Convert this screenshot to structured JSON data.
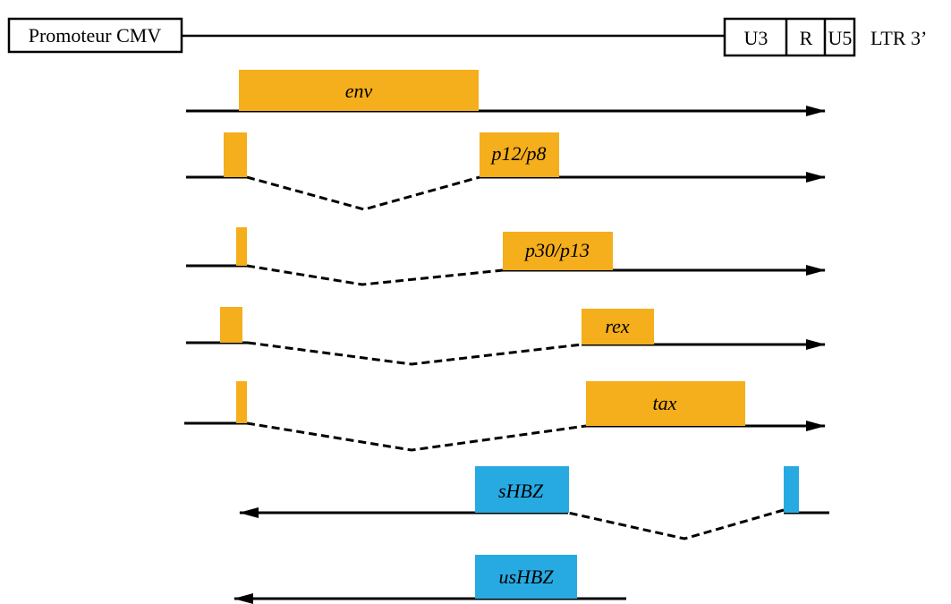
{
  "header": {
    "promoter_label": "Promoteur CMV",
    "ltr_boxes": [
      "U3",
      "R",
      "U5"
    ],
    "ltr_label": "LTR 3’"
  },
  "transcripts": [
    {
      "label": "env"
    },
    {
      "label": "p12/p8"
    },
    {
      "label": "p30/p13"
    },
    {
      "label": "rex"
    },
    {
      "label": "tax"
    },
    {
      "label": "sHBZ"
    },
    {
      "label": "usHBZ"
    }
  ],
  "colors": {
    "sense_exon": "#f5ae1c",
    "antisense_exon": "#27aae1",
    "line": "#000000"
  }
}
